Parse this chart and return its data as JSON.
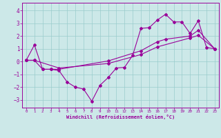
{
  "background_color": "#cce8e8",
  "line_color": "#990099",
  "grid_color": "#99cccc",
  "xlabel": "Windchill (Refroidissement éolien,°C)",
  "ylim": [
    -3.6,
    4.6
  ],
  "xlim": [
    -0.5,
    23.5
  ],
  "yticks": [
    -3,
    -2,
    -1,
    0,
    1,
    2,
    3,
    4
  ],
  "xticks": [
    0,
    1,
    2,
    3,
    4,
    5,
    6,
    7,
    8,
    9,
    10,
    11,
    12,
    13,
    14,
    15,
    16,
    17,
    18,
    19,
    20,
    21,
    22,
    23
  ],
  "line1_x": [
    0,
    1,
    2,
    3,
    4,
    5,
    6,
    7,
    8,
    9,
    10,
    11,
    12,
    13,
    14,
    15,
    16,
    17,
    18,
    19,
    20,
    21,
    22,
    23
  ],
  "line1_y": [
    0.1,
    1.3,
    -0.6,
    -0.6,
    -0.7,
    -1.6,
    -2.0,
    -2.15,
    -3.1,
    -1.85,
    -1.25,
    -0.5,
    -0.45,
    0.5,
    2.6,
    2.65,
    3.25,
    3.7,
    3.1,
    3.1,
    2.2,
    3.2,
    1.1,
    1.0
  ],
  "line2_x": [
    0,
    1,
    2,
    3,
    4,
    10,
    14,
    16,
    17,
    20,
    21,
    23
  ],
  "line2_y": [
    0.1,
    0.1,
    -0.6,
    -0.6,
    -0.6,
    0.05,
    0.85,
    1.55,
    1.75,
    2.0,
    2.45,
    1.0
  ],
  "line3_x": [
    0,
    1,
    4,
    10,
    14,
    16,
    20,
    21,
    23
  ],
  "line3_y": [
    0.1,
    0.1,
    -0.5,
    -0.15,
    0.55,
    1.15,
    1.85,
    2.05,
    1.0
  ],
  "ytick_fontsize": 5.5,
  "xtick_fontsize": 4.2,
  "xlabel_fontsize": 5.0
}
